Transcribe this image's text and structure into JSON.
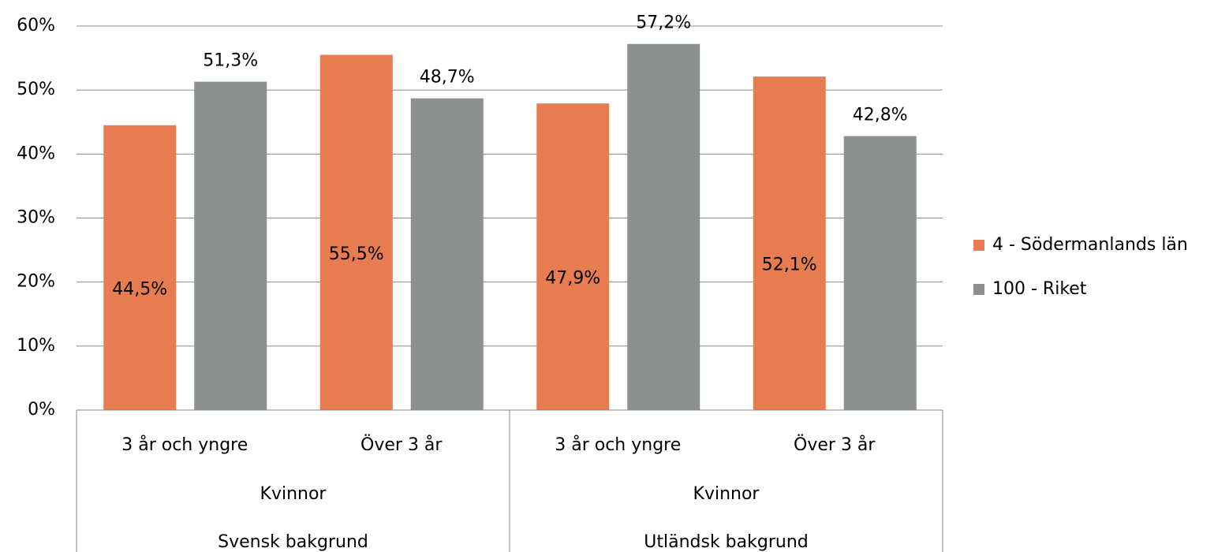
{
  "chart_data": {
    "type": "bar",
    "categories": [
      "3 år och yngre",
      "Över 3 år",
      "3 år och yngre",
      "Över 3 år"
    ],
    "category_levels": [
      [
        "Kvinnor",
        "Kvinnor"
      ],
      [
        "Svensk bakgrund",
        "Utländsk bakgrund"
      ]
    ],
    "series": [
      {
        "name": "4 - Södermanlands län",
        "color": "#e67c4f",
        "values": [
          44.5,
          55.5,
          47.9,
          52.1
        ],
        "value_labels": [
          "44,5%",
          "55,5%",
          "47,9%",
          "52,1%"
        ]
      },
      {
        "name": "100 - Riket",
        "color": "#8c918f",
        "values": [
          51.3,
          48.7,
          57.2,
          42.8
        ],
        "value_labels": [
          "51,3%",
          "48,7%",
          "57,2%",
          "42,8%"
        ]
      }
    ],
    "ylim": [
      0,
      60
    ],
    "yticks": [
      {
        "value": 0,
        "label": "0%"
      },
      {
        "value": 10,
        "label": "10%"
      },
      {
        "value": 20,
        "label": "20%"
      },
      {
        "value": 30,
        "label": "30%"
      },
      {
        "value": 40,
        "label": "40%"
      },
      {
        "value": 50,
        "label": "50%"
      },
      {
        "value": 60,
        "label": "60%"
      }
    ],
    "grid": true,
    "legend": "right"
  }
}
